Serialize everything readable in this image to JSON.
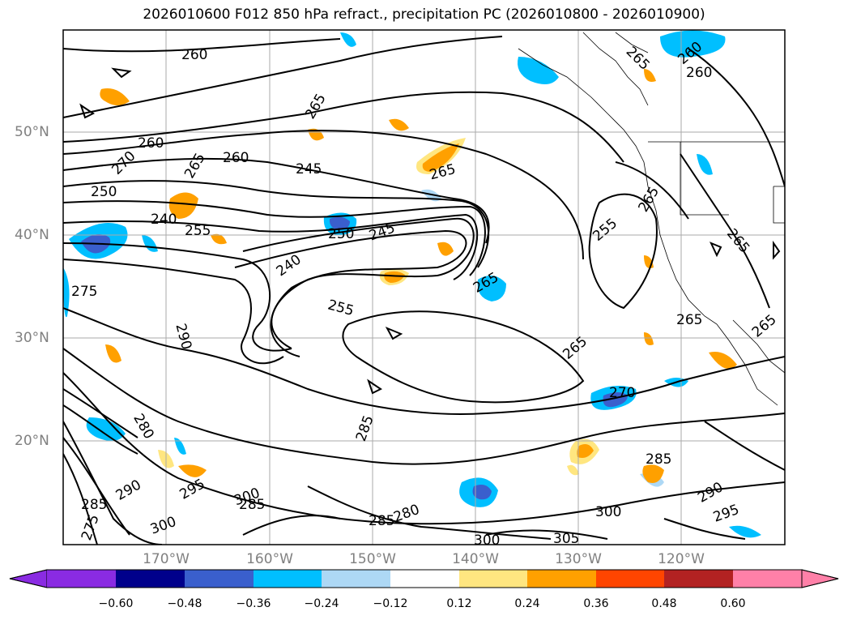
{
  "title": "2026010600 F012 850 hPa refract., precipitation PC (2026010800 - 2026010900)",
  "map": {
    "lon_labels": [
      "170°W",
      "160°W",
      "150°W",
      "140°W",
      "130°W",
      "120°W"
    ],
    "lat_labels": [
      "50°N",
      "40°N",
      "30°N",
      "20°N"
    ],
    "gridline_color": "#aaaaaa",
    "label_color": "#808080",
    "contour_labels": [
      {
        "text": "260"
      },
      {
        "text": "265"
      },
      {
        "text": "260"
      },
      {
        "text": "270"
      },
      {
        "text": "265"
      },
      {
        "text": "260"
      },
      {
        "text": "245"
      },
      {
        "text": "265"
      },
      {
        "text": "250"
      },
      {
        "text": "240"
      },
      {
        "text": "255"
      },
      {
        "text": "250"
      },
      {
        "text": "245"
      },
      {
        "text": "240"
      },
      {
        "text": "275"
      },
      {
        "text": "255"
      },
      {
        "text": "265"
      },
      {
        "text": "290"
      },
      {
        "text": "265"
      },
      {
        "text": "265"
      },
      {
        "text": "260"
      },
      {
        "text": "265"
      },
      {
        "text": "285"
      },
      {
        "text": "280"
      },
      {
        "text": "290"
      },
      {
        "text": "285"
      },
      {
        "text": "275"
      },
      {
        "text": "295"
      },
      {
        "text": "300"
      },
      {
        "text": "285"
      },
      {
        "text": "300"
      },
      {
        "text": "285"
      },
      {
        "text": "280"
      },
      {
        "text": "300"
      },
      {
        "text": "305"
      },
      {
        "text": "300"
      },
      {
        "text": "285"
      },
      {
        "text": "290"
      },
      {
        "text": "295"
      },
      {
        "text": "270"
      },
      {
        "text": "265"
      },
      {
        "text": "260"
      },
      {
        "text": "255"
      },
      {
        "text": "265"
      },
      {
        "text": "265"
      }
    ]
  },
  "colorbar": {
    "ticks": [
      "−0.60",
      "−0.48",
      "−0.36",
      "−0.24",
      "−0.12",
      "0.12",
      "0.24",
      "0.36",
      "0.48",
      "0.60"
    ],
    "colors": [
      "#8a2be2",
      "#00008b",
      "#3a5fcd",
      "#00bfff",
      "#add8f5",
      "#ffffff",
      "#ffe680",
      "#ffa000",
      "#ff4500",
      "#b22222",
      "#ff80a8"
    ]
  }
}
